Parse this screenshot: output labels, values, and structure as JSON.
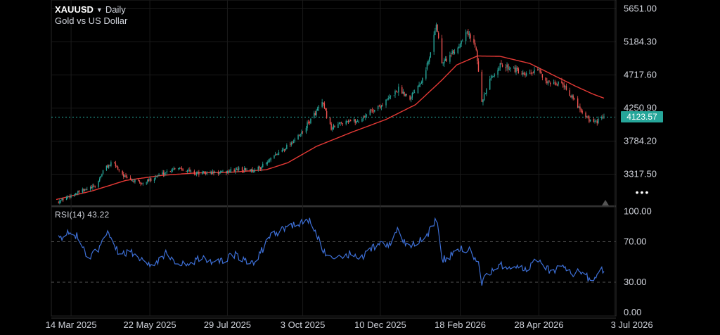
{
  "header": {
    "symbol": "XAUUSD",
    "timeframe": "Daily",
    "subtitle": "Gold vs US Dollar",
    "caret_icon": "caret-down-icon"
  },
  "price_axis": {
    "labels": [
      "5651.00",
      "5184.30",
      "4717.60",
      "4250.90",
      "3784.20",
      "3317.50"
    ]
  },
  "rsi_axis": {
    "labels": [
      "100.00",
      "70.00",
      "30.00",
      "0.00"
    ]
  },
  "time_axis": {
    "labels": [
      "14 Mar 2025",
      "22 May 2025",
      "29 Jul 2025",
      "3 Oct 2025",
      "10 Dec 2025",
      "18 Feb 2026",
      "28 Apr 2026",
      "3 Jul 2026"
    ]
  },
  "last_price": {
    "label": "4123.57",
    "color": "#26a69a"
  },
  "rsi": {
    "label": "RSI(14)",
    "value": "43.22",
    "color": "#3d6fd6",
    "levels": [
      70,
      30
    ]
  },
  "colors": {
    "up": "#26a69a",
    "down": "#ef5350",
    "ma": "#e53935",
    "background": "#000000",
    "grid": "#1a1a1a"
  },
  "controls": {
    "more_icon": "more-dots-icon",
    "more_label": "•••",
    "scroll_icon": "triangle-up-icon"
  },
  "chart_data": [
    {
      "type": "candlestick",
      "title": "XAUUSD Daily",
      "subtitle": "Gold vs US Dollar",
      "ylim": [
        3000,
        5700
      ],
      "x_start": "2025-03-01",
      "x_end": "2026-06-24",
      "last_value": 4123.57,
      "price_anchors": [
        [
          "2025-03-01",
          2920
        ],
        [
          "2025-03-20",
          3060
        ],
        [
          "2025-04-05",
          3150
        ],
        [
          "2025-04-12",
          3400
        ],
        [
          "2025-04-20",
          3480
        ],
        [
          "2025-05-01",
          3260
        ],
        [
          "2025-05-15",
          3180
        ],
        [
          "2025-06-01",
          3320
        ],
        [
          "2025-06-15",
          3420
        ],
        [
          "2025-07-01",
          3330
        ],
        [
          "2025-07-25",
          3340
        ],
        [
          "2025-08-08",
          3390
        ],
        [
          "2025-08-22",
          3370
        ],
        [
          "2025-09-01",
          3470
        ],
        [
          "2025-09-15",
          3660
        ],
        [
          "2025-10-01",
          3870
        ],
        [
          "2025-10-08",
          4040
        ],
        [
          "2025-10-20",
          4320
        ],
        [
          "2025-10-28",
          3960
        ],
        [
          "2025-11-10",
          4080
        ],
        [
          "2025-11-20",
          4060
        ],
        [
          "2025-12-01",
          4200
        ],
        [
          "2025-12-12",
          4300
        ],
        [
          "2025-12-26",
          4520
        ],
        [
          "2026-01-05",
          4400
        ],
        [
          "2026-01-15",
          4650
        ],
        [
          "2026-01-22",
          4950
        ],
        [
          "2026-01-28",
          5450
        ],
        [
          "2026-02-02",
          4880
        ],
        [
          "2026-02-10",
          5000
        ],
        [
          "2026-02-16",
          5100
        ],
        [
          "2026-02-23",
          5350
        ],
        [
          "2026-03-04",
          5110
        ],
        [
          "2026-03-09",
          4320
        ],
        [
          "2026-03-15",
          4600
        ],
        [
          "2026-03-24",
          4850
        ],
        [
          "2026-04-05",
          4820
        ],
        [
          "2026-04-15",
          4700
        ],
        [
          "2026-04-28",
          4780
        ],
        [
          "2026-05-08",
          4560
        ],
        [
          "2026-05-18",
          4620
        ],
        [
          "2026-05-28",
          4380
        ],
        [
          "2026-06-06",
          4180
        ],
        [
          "2026-06-14",
          4030
        ],
        [
          "2026-06-24",
          4123.57
        ]
      ],
      "ma_anchors": [
        [
          "2025-03-01",
          2960
        ],
        [
          "2025-04-01",
          3080
        ],
        [
          "2025-05-01",
          3230
        ],
        [
          "2025-06-01",
          3300
        ],
        [
          "2025-07-01",
          3335
        ],
        [
          "2025-08-01",
          3345
        ],
        [
          "2025-09-01",
          3380
        ],
        [
          "2025-09-20",
          3480
        ],
        [
          "2025-10-15",
          3710
        ],
        [
          "2025-11-15",
          3910
        ],
        [
          "2025-12-15",
          4090
        ],
        [
          "2026-01-10",
          4300
        ],
        [
          "2026-02-01",
          4630
        ],
        [
          "2026-02-15",
          4860
        ],
        [
          "2026-03-05",
          4985
        ],
        [
          "2026-03-25",
          4980
        ],
        [
          "2026-04-20",
          4880
        ],
        [
          "2026-05-10",
          4720
        ],
        [
          "2026-05-30",
          4560
        ],
        [
          "2026-06-14",
          4450
        ],
        [
          "2026-06-24",
          4390
        ]
      ],
      "ma_color": "#e53935"
    },
    {
      "type": "line",
      "title": "RSI(14)",
      "ylim": [
        0,
        100
      ],
      "levels": [
        70,
        30
      ],
      "last_value": 43.22,
      "rsi_anchors": [
        [
          "2025-03-01",
          71
        ],
        [
          "2025-03-10",
          78
        ],
        [
          "2025-03-20",
          76
        ],
        [
          "2025-03-28",
          52
        ],
        [
          "2025-04-08",
          64
        ],
        [
          "2025-04-16",
          80
        ],
        [
          "2025-04-24",
          60
        ],
        [
          "2025-05-10",
          58
        ],
        [
          "2025-05-22",
          45
        ],
        [
          "2025-06-05",
          58
        ],
        [
          "2025-06-20",
          47
        ],
        [
          "2025-07-05",
          53
        ],
        [
          "2025-07-20",
          50
        ],
        [
          "2025-08-05",
          57
        ],
        [
          "2025-08-20",
          48
        ],
        [
          "2025-09-05",
          75
        ],
        [
          "2025-09-20",
          86
        ],
        [
          "2025-10-10",
          90
        ],
        [
          "2025-10-22",
          60
        ],
        [
          "2025-10-30",
          50
        ],
        [
          "2025-11-12",
          58
        ],
        [
          "2025-11-25",
          55
        ],
        [
          "2025-12-08",
          68
        ],
        [
          "2025-12-18",
          68
        ],
        [
          "2025-12-26",
          84
        ],
        [
          "2026-01-03",
          62
        ],
        [
          "2026-01-12",
          70
        ],
        [
          "2026-01-20",
          76
        ],
        [
          "2026-01-28",
          94
        ],
        [
          "2026-02-02",
          52
        ],
        [
          "2026-02-12",
          58
        ],
        [
          "2026-02-20",
          64
        ],
        [
          "2026-02-28",
          60
        ],
        [
          "2026-03-06",
          47
        ],
        [
          "2026-03-09",
          30
        ],
        [
          "2026-03-15",
          38
        ],
        [
          "2026-03-25",
          47
        ],
        [
          "2026-04-08",
          45
        ],
        [
          "2026-04-18",
          42
        ],
        [
          "2026-04-28",
          54
        ],
        [
          "2026-05-08",
          40
        ],
        [
          "2026-05-18",
          46
        ],
        [
          "2026-05-30",
          38
        ],
        [
          "2026-06-07",
          43
        ],
        [
          "2026-06-12",
          28
        ],
        [
          "2026-06-18",
          38
        ],
        [
          "2026-06-24",
          43.22
        ]
      ]
    }
  ]
}
